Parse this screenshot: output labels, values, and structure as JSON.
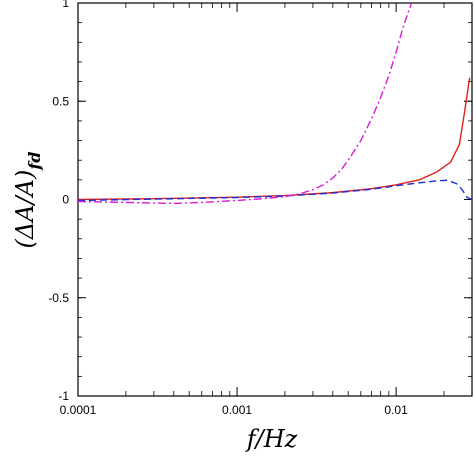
{
  "chart_data": {
    "type": "line",
    "xscale": "log",
    "xlim": [
      0.0001,
      0.03
    ],
    "ylim": [
      -1,
      1
    ],
    "grid": false,
    "legend": "none",
    "xlabel": "f/Hz",
    "ylabel": "(ΔA/A)",
    "ylabel_subscript": "fd",
    "xticks": [
      0.0001,
      0.001,
      0.01
    ],
    "xtick_labels": [
      "0.0001",
      "0.001",
      "0.01"
    ],
    "yticks": [
      1,
      0.5,
      0,
      -0.5,
      -1
    ],
    "ytick_labels": [
      "1",
      "0.5",
      "0",
      "-0.5",
      "-1"
    ],
    "series": [
      {
        "color": "#e0201c",
        "dash": "solid",
        "points": [
          [
            0.0001,
            0.0
          ],
          [
            0.0003,
            0.004
          ],
          [
            0.001,
            0.012
          ],
          [
            0.002,
            0.02
          ],
          [
            0.004,
            0.035
          ],
          [
            0.007,
            0.055
          ],
          [
            0.01,
            0.075
          ],
          [
            0.014,
            0.1
          ],
          [
            0.018,
            0.14
          ],
          [
            0.022,
            0.19
          ],
          [
            0.025,
            0.28
          ],
          [
            0.027,
            0.45
          ],
          [
            0.029,
            0.62
          ]
        ]
      },
      {
        "color": "#1a2fd6",
        "dash": "dashed",
        "points": [
          [
            0.0001,
            -0.005
          ],
          [
            0.0003,
            0.002
          ],
          [
            0.001,
            0.01
          ],
          [
            0.002,
            0.018
          ],
          [
            0.004,
            0.033
          ],
          [
            0.007,
            0.052
          ],
          [
            0.01,
            0.07
          ],
          [
            0.014,
            0.085
          ],
          [
            0.018,
            0.095
          ],
          [
            0.021,
            0.098
          ],
          [
            0.024,
            0.08
          ],
          [
            0.026,
            0.05
          ],
          [
            0.028,
            0.01
          ],
          [
            0.03,
            0.0
          ]
        ]
      },
      {
        "color": "#d81ad8",
        "dash": "dashdot",
        "points": [
          [
            0.0001,
            -0.01
          ],
          [
            0.0002,
            -0.015
          ],
          [
            0.0004,
            -0.02
          ],
          [
            0.0006,
            -0.015
          ],
          [
            0.001,
            -0.005
          ],
          [
            0.0015,
            0.005
          ],
          [
            0.002,
            0.015
          ],
          [
            0.0025,
            0.03
          ],
          [
            0.003,
            0.05
          ],
          [
            0.0035,
            0.075
          ],
          [
            0.004,
            0.11
          ],
          [
            0.0045,
            0.15
          ],
          [
            0.005,
            0.2
          ],
          [
            0.006,
            0.3
          ],
          [
            0.007,
            0.41
          ],
          [
            0.008,
            0.52
          ],
          [
            0.009,
            0.63
          ],
          [
            0.01,
            0.75
          ],
          [
            0.011,
            0.87
          ],
          [
            0.012,
            0.96
          ],
          [
            0.0125,
            1.0
          ]
        ]
      }
    ]
  }
}
